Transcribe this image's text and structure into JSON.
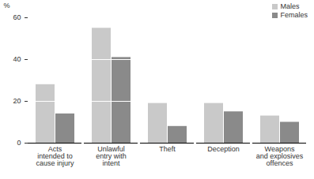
{
  "chart_data": {
    "type": "bar",
    "categories": [
      "Acts\nintended to\ncause injury",
      "Unlawful\nentry with\nintent",
      "Theft",
      "Deception",
      "Weapons\nand explosives\noffences"
    ],
    "series": [
      {
        "name": "Males",
        "color": "#c9c9c9",
        "values": [
          28,
          55,
          19,
          19,
          13
        ]
      },
      {
        "name": "Females",
        "color": "#8a8a8a",
        "values": [
          14,
          41,
          8,
          15,
          10
        ]
      }
    ],
    "y_label": "%",
    "ylim": [
      0,
      60
    ],
    "yticks": [
      0,
      20,
      40,
      60
    ],
    "grid": true,
    "legend": "top-right"
  }
}
